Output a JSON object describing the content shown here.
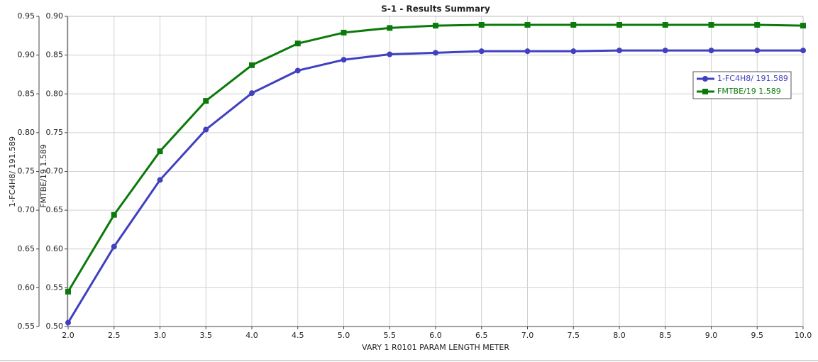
{
  "chart_data": {
    "type": "line",
    "title": "S-1 - Results Summary",
    "x_label": "VARY  1 R0101   PARAM   LENGTH   METER",
    "y_label": "1-FC4H8/ 191.589",
    "y2_label": "FMTBE/19 1.589",
    "x": [
      2.0,
      2.5,
      3.0,
      3.5,
      4.0,
      4.5,
      5.0,
      5.5,
      6.0,
      6.5,
      7.0,
      7.5,
      8.0,
      8.5,
      9.0,
      9.5,
      10.0
    ],
    "xlim": [
      2,
      10
    ],
    "xticks": [
      {
        "value": 2,
        "label": "2.0"
      },
      2.5,
      {
        "value": 3,
        "label": "3.0"
      },
      3.5,
      {
        "value": 4,
        "label": "4.0"
      },
      4.5,
      {
        "value": 5,
        "label": "5.0"
      },
      5.5,
      {
        "value": 6,
        "label": "6.0"
      },
      6.5,
      {
        "value": 7,
        "label": "7.0"
      },
      7.5,
      {
        "value": 8,
        "label": "8.0"
      },
      8.5,
      {
        "value": 9,
        "label": "9.0"
      },
      9.5,
      {
        "value": 10,
        "label": "10.0"
      }
    ],
    "ylim": [
      0.55,
      0.95
    ],
    "yticks": [
      0.55,
      {
        "value": 0.6,
        "label": "0.60"
      },
      0.65,
      {
        "value": 0.7,
        "label": "0.70"
      },
      0.75,
      {
        "value": 0.8,
        "label": "0.80"
      },
      0.85,
      {
        "value": 0.9,
        "label": "0.90"
      },
      0.95
    ],
    "y2lim": [
      0.5,
      0.9
    ],
    "y2ticks": [
      {
        "value": 0.5,
        "label": "0.50"
      },
      0.55,
      {
        "value": 0.6,
        "label": "0.60"
      },
      0.65,
      {
        "value": 0.7,
        "label": "0.70"
      },
      0.75,
      {
        "value": 0.8,
        "label": "0.80"
      },
      0.85,
      {
        "value": 0.9,
        "label": "0.90"
      }
    ],
    "grid": true,
    "legend": "upper right",
    "series": [
      {
        "name": "1-FC4H8/ 191.589",
        "color": "#4040c0",
        "marker": "circle",
        "values": [
          0.555,
          0.653,
          0.739,
          0.804,
          0.851,
          0.88,
          0.894,
          0.901,
          0.903,
          0.905,
          0.905,
          0.905,
          0.906,
          0.906,
          0.906,
          0.906,
          0.906
        ]
      },
      {
        "name": "FMTBE/19 1.589",
        "color": "#0a7a0a",
        "marker": "square",
        "axis": "y2",
        "values": [
          0.545,
          0.644,
          0.726,
          0.791,
          0.837,
          0.865,
          0.879,
          0.885,
          0.888,
          0.889,
          0.889,
          0.889,
          0.889,
          0.889,
          0.889,
          0.889,
          0.888
        ]
      }
    ]
  }
}
